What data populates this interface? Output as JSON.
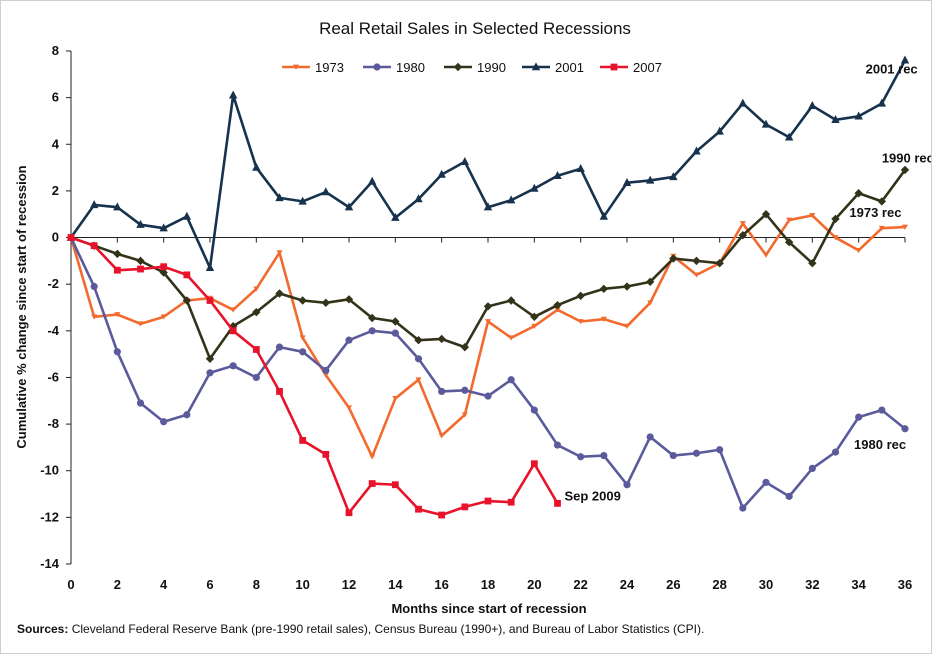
{
  "chart_data": {
    "type": "line",
    "title": "Real Retail Sales in Selected Recessions",
    "xlabel": "Months since start of recession",
    "ylabel": "Cumulative % change since start of recession",
    "xlim": [
      0,
      36
    ],
    "ylim": [
      -14,
      8
    ],
    "x_ticks": [
      0,
      2,
      4,
      6,
      8,
      10,
      12,
      14,
      16,
      18,
      20,
      22,
      24,
      26,
      28,
      30,
      32,
      34,
      36
    ],
    "y_ticks": [
      -14,
      -12,
      -10,
      -8,
      -6,
      -4,
      -2,
      0,
      2,
      4,
      6,
      8
    ],
    "legend_position": "top-center",
    "series": [
      {
        "name": "1973",
        "color": "#f26a2e",
        "marker": "down-triangle",
        "values": [
          0,
          -3.4,
          -3.3,
          -3.7,
          -3.4,
          -2.7,
          -2.6,
          -3.1,
          -2.2,
          -0.65,
          -4.3,
          -5.9,
          -7.3,
          -9.4,
          -6.9,
          -6.1,
          -8.5,
          -7.6,
          -3.6,
          -4.3,
          -3.8,
          -3.1,
          -3.6,
          -3.5,
          -3.8,
          -2.8,
          -0.8,
          -1.6,
          -1.1,
          0.6,
          -0.75,
          0.75,
          0.95,
          0,
          -0.55,
          0.4,
          0.45
        ]
      },
      {
        "name": "1980",
        "color": "#5b5b9b",
        "marker": "circle",
        "values": [
          0,
          -2.1,
          -4.9,
          -7.1,
          -7.9,
          -7.6,
          -5.8,
          -5.5,
          -6,
          -4.7,
          -4.9,
          -5.7,
          -4.4,
          -4,
          -4.1,
          -5.2,
          -6.6,
          -6.55,
          -6.8,
          -6.1,
          -7.4,
          -8.9,
          -9.4,
          -9.35,
          -10.6,
          -8.55,
          -9.35,
          -9.25,
          -9.1,
          -11.6,
          -10.5,
          -11.1,
          -9.9,
          -9.2,
          -7.7,
          -7.4,
          -8.2
        ]
      },
      {
        "name": "1990",
        "color": "#33331a",
        "marker": "diamond",
        "values": [
          0,
          -0.35,
          -0.7,
          -1,
          -1.5,
          -2.7,
          -5.2,
          -3.8,
          -3.2,
          -2.4,
          -2.7,
          -2.8,
          -2.65,
          -3.45,
          -3.6,
          -4.4,
          -4.35,
          -4.7,
          -2.95,
          -2.7,
          -3.4,
          -2.9,
          -2.5,
          -2.2,
          -2.1,
          -1.9,
          -0.9,
          -1,
          -1.1,
          0.1,
          1,
          -0.2,
          -1.1,
          0.8,
          1.9,
          1.55,
          2.9
        ]
      },
      {
        "name": "2001",
        "color": "#17324d",
        "marker": "triangle",
        "values": [
          0,
          1.4,
          1.3,
          0.55,
          0.4,
          0.9,
          -1.3,
          6.1,
          3,
          1.7,
          1.55,
          1.95,
          1.3,
          2.4,
          0.85,
          1.65,
          2.7,
          3.25,
          1.3,
          1.6,
          2.1,
          2.65,
          2.95,
          0.9,
          2.35,
          2.45,
          2.6,
          3.7,
          4.55,
          5.75,
          4.85,
          4.3,
          5.65,
          5.05,
          5.2,
          5.75,
          7.6
        ]
      },
      {
        "name": "2007",
        "color": "#e8132a",
        "marker": "square",
        "values": [
          0,
          -0.35,
          -1.4,
          -1.35,
          -1.25,
          -1.6,
          -2.7,
          -4,
          -4.8,
          -6.6,
          -8.7,
          -9.3,
          -11.8,
          -10.55,
          -10.6,
          -11.65,
          -11.9,
          -11.55,
          -11.3,
          -11.35,
          -9.7,
          -11.4
        ]
      }
    ],
    "annotations": [
      {
        "text": "2001 rec",
        "x": 34.3,
        "y": 7.2
      },
      {
        "text": "1990 rec",
        "x": 35.0,
        "y": 3.4
      },
      {
        "text": "1973 rec",
        "x": 33.6,
        "y": 1.05
      },
      {
        "text": "1980 rec",
        "x": 33.8,
        "y": -8.9
      },
      {
        "text": "Sep 2009",
        "x": 21.3,
        "y": -11.1
      }
    ]
  },
  "sources": {
    "label": "Sources:",
    "text": " Cleveland Federal Reserve Bank (pre-1990 retail sales), Census Bureau (1990+), and Bureau of Labor Statistics (CPI)."
  }
}
